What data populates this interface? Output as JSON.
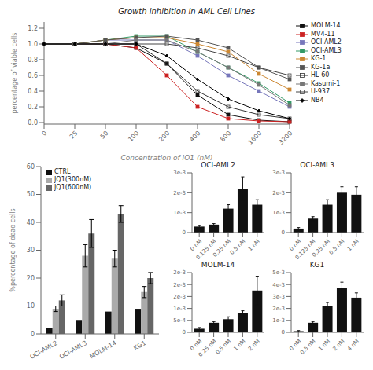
{
  "chart_data": [
    {
      "type": "line",
      "title": "Growth inhibition in AML Cell Lines",
      "x_label": "Concentration of JQ1 (nM)",
      "y_label": "percentage of viable cells",
      "categories": [
        "0",
        "25",
        "50",
        "100",
        "200",
        "400",
        "800",
        "1600",
        "3200"
      ],
      "ylim": [
        -0.02,
        1.28
      ],
      "yticks": [
        {
          "value": 0,
          "label": "0.0"
        },
        0.2,
        0.4,
        0.6,
        0.8,
        {
          "value": 1,
          "label": "1.0"
        },
        1.2
      ],
      "legend": "upper right",
      "series": [
        {
          "name": "MOLM-14",
          "color": "#111111",
          "marker": "square",
          "values": [
            1.0,
            1.0,
            1.0,
            0.95,
            0.75,
            0.35,
            0.1,
            0.03,
            0.01
          ]
        },
        {
          "name": "MV4-11",
          "color": "#cc2222",
          "marker": "square",
          "values": [
            1.0,
            1.0,
            1.0,
            0.95,
            0.6,
            0.2,
            0.05,
            0.02,
            0.01
          ]
        },
        {
          "name": "OCI-AML2",
          "color": "#7777bb",
          "marker": "square",
          "values": [
            1.0,
            1.0,
            1.05,
            1.05,
            1.05,
            0.85,
            0.6,
            0.4,
            0.2
          ]
        },
        {
          "name": "OCI-AML3",
          "color": "#339966",
          "marker": "square",
          "values": [
            1.0,
            1.0,
            1.05,
            1.1,
            1.1,
            0.9,
            0.7,
            0.5,
            0.25
          ]
        },
        {
          "name": "KG-1",
          "color": "#cc8833",
          "marker": "square",
          "values": [
            1.0,
            1.0,
            1.05,
            1.08,
            1.08,
            1.0,
            0.9,
            0.62,
            0.42
          ]
        },
        {
          "name": "KG-1a",
          "color": "#555555",
          "marker": "square",
          "values": [
            1.0,
            1.0,
            1.05,
            1.08,
            1.1,
            1.05,
            0.95,
            0.7,
            0.55
          ]
        },
        {
          "name": "HL-60",
          "color": "#333333",
          "marker": "open_square",
          "values": [
            1.0,
            1.0,
            1.0,
            1.0,
            0.75,
            0.4,
            0.2,
            0.1,
            0.05
          ]
        },
        {
          "name": "Kasumi-1",
          "color": "#777777",
          "marker": "square",
          "values": [
            1.0,
            1.0,
            1.0,
            1.05,
            1.05,
            0.9,
            0.7,
            0.48,
            0.22
          ]
        },
        {
          "name": "U-937",
          "color": "#444444",
          "marker": "open_square",
          "values": [
            1.0,
            1.0,
            1.0,
            1.0,
            1.0,
            0.95,
            0.85,
            0.7,
            0.6
          ]
        },
        {
          "name": "NB4",
          "color": "#000000",
          "marker": "diamond",
          "values": [
            1.0,
            1.0,
            1.0,
            1.0,
            0.85,
            0.55,
            0.3,
            0.15,
            0.05
          ]
        }
      ]
    },
    {
      "type": "bar",
      "y_label": "%percentage of dead cells",
      "categories": [
        "OCI-AML2",
        "OCI-AML3",
        "MOLM-14",
        "KG1"
      ],
      "ylim": [
        0,
        60
      ],
      "yticks": [
        0,
        10,
        20,
        30,
        40,
        50,
        60
      ],
      "legend": "upper left",
      "series": [
        {
          "name": "CTRL",
          "color": "#111111",
          "values": [
            2,
            5,
            8,
            9
          ]
        },
        {
          "name": "JQ1(300nM)",
          "color": "#aaaaaa",
          "values": [
            9,
            28,
            27,
            15
          ],
          "errors": [
            1,
            4,
            3,
            2
          ]
        },
        {
          "name": "JQ1(600nM)",
          "color": "#666666",
          "values": [
            12,
            36,
            43,
            20
          ],
          "errors": [
            2,
            5,
            3,
            2
          ]
        }
      ]
    },
    {
      "type": "bar",
      "title": "OCI-AML2",
      "color": "#111111",
      "categories": [
        "0 nM",
        "0.125 nM",
        "0.25 nM",
        "0.5 nM",
        "1 nM"
      ],
      "values": [
        0.0003,
        0.0004,
        0.0012,
        0.0022,
        0.0014
      ],
      "errors": [
        5e-05,
        5e-05,
        0.0002,
        0.0006,
        0.00025
      ],
      "ylim": [
        0,
        0.003
      ],
      "yticks": [
        0,
        {
          "value": 0.001,
          "label": "1e-3"
        },
        {
          "value": 0.002,
          "label": "2e-3"
        },
        {
          "value": 0.003,
          "label": "3e-3"
        }
      ]
    },
    {
      "type": "bar",
      "title": "OCI-AML3",
      "color": "#111111",
      "categories": [
        "0 nM",
        "0.125 nM",
        "0.25 nM",
        "0.5 nM",
        "1 nM"
      ],
      "values": [
        0.0002,
        0.0007,
        0.0014,
        0.002,
        0.0019
      ],
      "errors": [
        5e-05,
        0.0001,
        0.00025,
        0.0003,
        0.0004
      ],
      "ylim": [
        0,
        0.003
      ],
      "yticks": [
        0,
        {
          "value": 0.001,
          "label": "1e-3"
        },
        {
          "value": 0.002,
          "label": "2e-3"
        },
        {
          "value": 0.003,
          "label": "3e-3"
        }
      ]
    },
    {
      "type": "bar",
      "title": "MOLM-14",
      "color": "#111111",
      "categories": [
        "0 nM",
        "0.25 nM",
        "0.5 nM",
        "1 nM",
        "2 nM"
      ],
      "values": [
        0.00015,
        0.0004,
        0.00055,
        0.0008,
        0.00175
      ],
      "errors": [
        5e-05,
        5e-05,
        0.0001,
        0.0001,
        0.0006
      ],
      "ylim": [
        0,
        0.0025
      ],
      "yticks": [
        0,
        {
          "value": 0.0005,
          "label": "5e-4"
        },
        {
          "value": 0.001,
          "label": "1e-3"
        },
        {
          "value": 0.0015,
          "label": "2e-3"
        },
        {
          "value": 0.002,
          "label": "2e-3"
        },
        {
          "value": 0.0025,
          "label": "2e-3"
        }
      ]
    },
    {
      "type": "bar",
      "title": "KG1",
      "color": "#111111",
      "categories": [
        "0 nM",
        "0.5 nM",
        "1 nM",
        "2 nM",
        "4 nM"
      ],
      "values": [
        0.0001,
        0.0008,
        0.0022,
        0.0037,
        0.0029
      ],
      "errors": [
        5e-05,
        0.0001,
        0.0003,
        0.0005,
        0.0004
      ],
      "ylim": [
        0,
        0.005
      ],
      "yticks": [
        0,
        {
          "value": 0.001,
          "label": "1e-3"
        },
        {
          "value": 0.002,
          "label": "2e-3"
        },
        {
          "value": 0.003,
          "label": "3e-3"
        },
        {
          "value": 0.004,
          "label": "4e-3"
        },
        {
          "value": 0.005,
          "label": "5e-3"
        }
      ]
    }
  ]
}
